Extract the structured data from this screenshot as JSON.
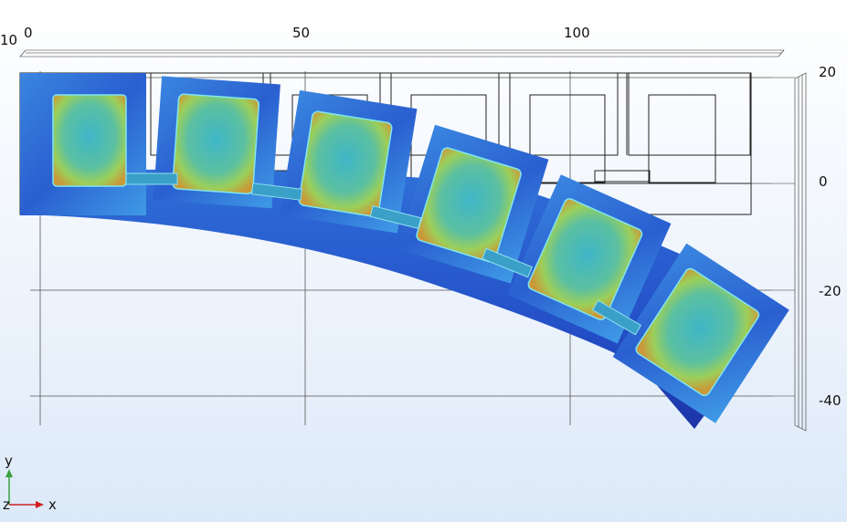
{
  "x_axis": {
    "ticks": [
      "0",
      "50",
      "100"
    ],
    "edge_label": "10"
  },
  "y_axis": {
    "ticks": [
      "20",
      "0",
      "-20",
      "-40"
    ]
  },
  "triad": {
    "y": "y",
    "x": "x",
    "z": "z"
  },
  "colors": {
    "beam_dark": "#1f3fb8",
    "beam_mid": "#2f6fd8",
    "cell_cyan": "#3fb6c8",
    "cell_green": "#8fcf6a",
    "cell_orange": "#d8a040",
    "edge_cyan": "#6ee0f0",
    "triad_y": "#3aa040",
    "triad_x": "#d02020"
  },
  "segment_count": 6
}
